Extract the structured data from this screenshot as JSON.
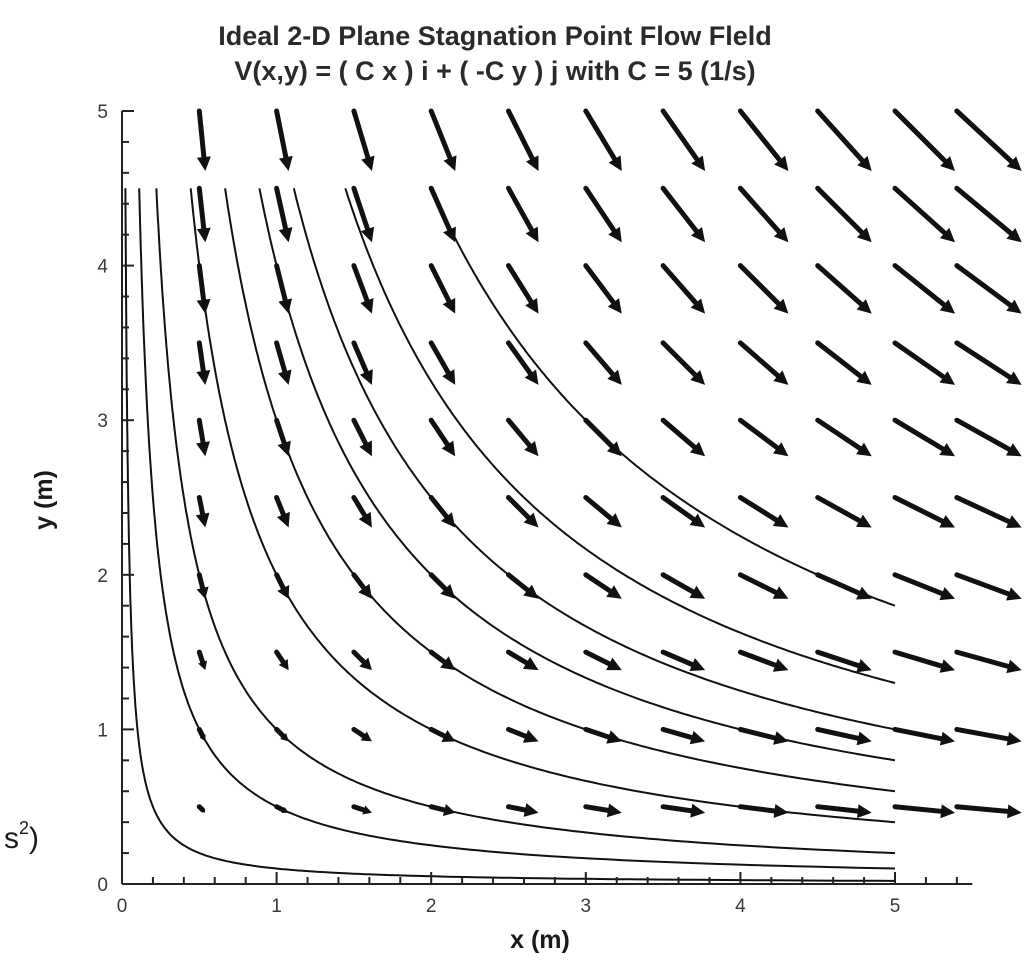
{
  "chart_data": {
    "type": "vector_field",
    "title": "Ideal 2-D Plane Stagnation Point Flow Fleld",
    "subtitle": "V(x,y) = ( C x ) i  +  ( -C y ) j  with  C = 5 (1/s)",
    "xlabel": "x (m)",
    "ylabel": "y (m)",
    "xlim": [
      0,
      5.5
    ],
    "ylim": [
      0,
      5
    ],
    "xticks": [
      "0",
      "1",
      "2",
      "3",
      "4",
      "5"
    ],
    "yticks": [
      "0",
      "1",
      "2",
      "3",
      "4",
      "5"
    ],
    "C": 5,
    "vector_x": [
      0.5,
      1.0,
      1.5,
      2.0,
      2.5,
      3.0,
      3.5,
      4.0,
      4.5,
      5.0,
      5.4
    ],
    "vector_y": [
      0.5,
      1.0,
      1.5,
      2.0,
      2.5,
      3.0,
      3.5,
      4.0,
      4.5,
      5.0
    ],
    "streamline_constants": [
      0.1,
      0.5,
      1,
      2,
      3,
      4,
      5,
      6.5,
      9
    ],
    "streamline_x_end": 5,
    "streamline_y_max": 4.5,
    "colors": {
      "arrow": "#111111",
      "streamline": "#111111",
      "axis": "#222222"
    }
  },
  "side_fragment": {
    "text": "s",
    "sup": "2",
    "close": ")"
  }
}
